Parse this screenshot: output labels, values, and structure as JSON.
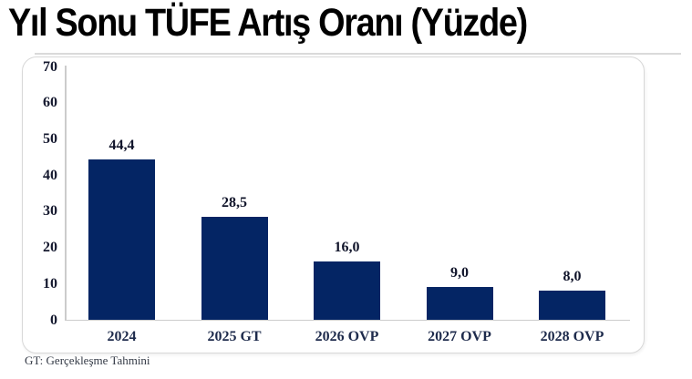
{
  "title": "Yıl Sonu TÜFE Artış Oranı (Yüzde)",
  "footnote": "GT: Gerçekleşme Tahmini",
  "colors": {
    "bar": "#042564",
    "axis_line": "#cccccc",
    "tick_text": "#14182e",
    "value_text": "#10142a",
    "category_text": "#1e2b4c",
    "card_border": "#d8d8d8",
    "title_text": "#000000"
  },
  "chart_data": {
    "type": "bar",
    "title": "Yıl Sonu TÜFE Artış Oranı (Yüzde)",
    "categories": [
      "2024",
      "2025 GT",
      "2026 OVP",
      "2027 OVP",
      "2028 OVP"
    ],
    "values": [
      44.4,
      28.5,
      16.0,
      9.0,
      8.0
    ],
    "value_labels": [
      "44,4",
      "28,5",
      "16,0",
      "9,0",
      "8,0"
    ],
    "xlabel": "",
    "ylabel": "",
    "ylim": [
      0,
      70
    ],
    "yticks": [
      0,
      10,
      20,
      30,
      40,
      50,
      60,
      70
    ],
    "grid": false,
    "legend": false,
    "bar_color": "#042564",
    "note": "GT: Gerçekleşme Tahmini"
  }
}
